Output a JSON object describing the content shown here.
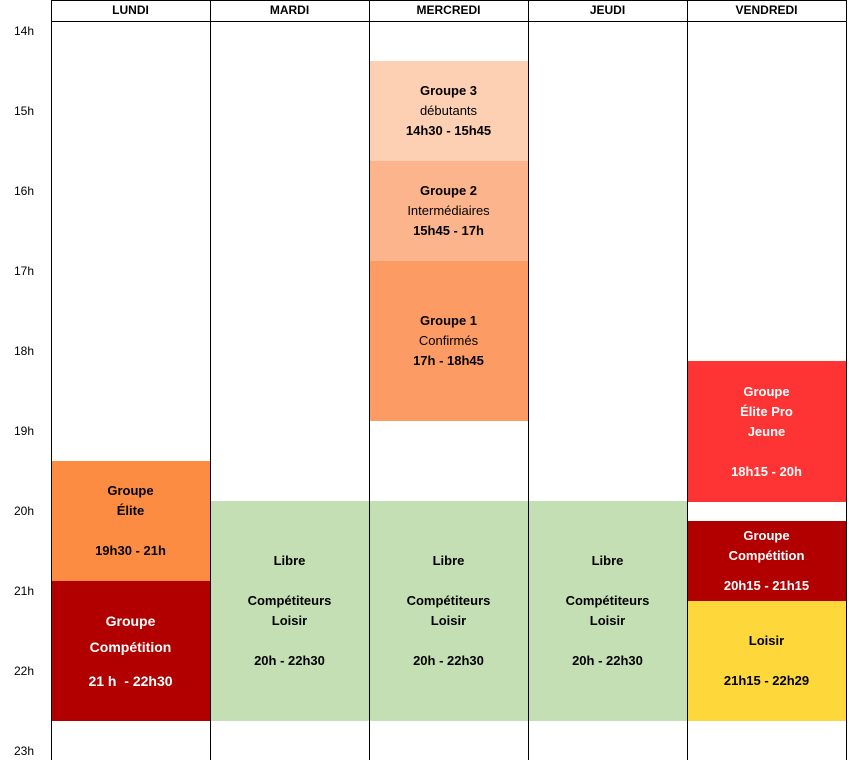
{
  "days": [
    "LUNDI",
    "MARDI",
    "MERCREDI",
    "JEUDI",
    "VENDREDI"
  ],
  "hours": [
    "14h",
    "15h",
    "16h",
    "17h",
    "18h",
    "19h",
    "20h",
    "21h",
    "22h",
    "23h"
  ],
  "colors": {
    "groupe3": "#fdcfb3",
    "groupe2": "#fcb48c",
    "groupe1": "#fc9b63",
    "elite": "#fd8c43",
    "competition": "#b20000",
    "libre": "#c5dfb4",
    "elite_pro": "#fe3333",
    "loisir": "#fed83a"
  },
  "events": {
    "lundi_elite": {
      "line1": "Groupe",
      "line2": "Élite",
      "time": "19h30 - 21h"
    },
    "lundi_competition": {
      "line1": "Groupe",
      "line2": "Compétition",
      "time": "21 h  - 22h30"
    },
    "mardi_libre": {
      "line1": "Libre",
      "line2": "Compétiteurs",
      "line3": "Loisir",
      "time": "20h - 22h30"
    },
    "mercredi_groupe3": {
      "line1": "Groupe 3",
      "line2": "débutants",
      "time": "14h30 - 15h45"
    },
    "mercredi_groupe2": {
      "line1": "Groupe 2",
      "line2": "Intermédiaires",
      "time": "15h45 - 17h"
    },
    "mercredi_groupe1": {
      "line1": "Groupe 1",
      "line2": "Confirmés",
      "time": "17h - 18h45"
    },
    "mercredi_libre": {
      "line1": "Libre",
      "line2": "Compétiteurs",
      "line3": "Loisir",
      "time": "20h - 22h30"
    },
    "jeudi_libre": {
      "line1": "Libre",
      "line2": "Compétiteurs",
      "line3": "Loisir",
      "time": "20h - 22h30"
    },
    "vendredi_elite_pro": {
      "line1": "Groupe",
      "line2": "Élite Pro",
      "line3": "Jeune",
      "time": "18h15 - 20h"
    },
    "vendredi_competition": {
      "line1": "Groupe",
      "line2": "Compétition",
      "time": "20h15 - 21h15"
    },
    "vendredi_loisir": {
      "line1": "Loisir",
      "time": "21h15 - 22h29"
    }
  }
}
